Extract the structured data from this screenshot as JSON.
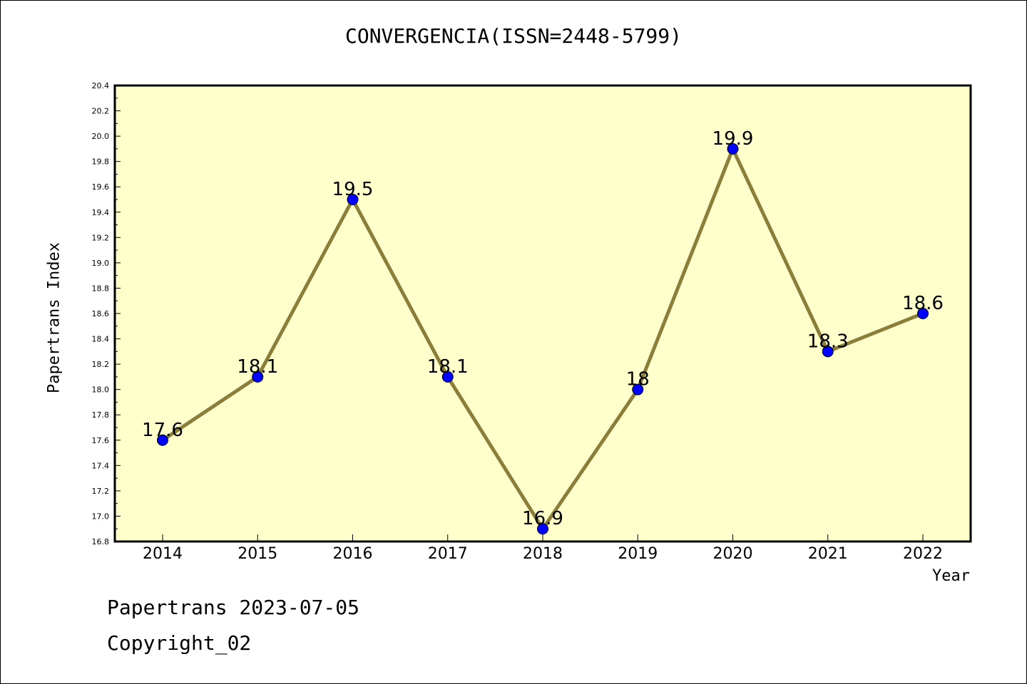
{
  "chart_data": {
    "type": "line",
    "title": "CONVERGENCIA(ISSN=2448-5799)",
    "xlabel": "Year",
    "ylabel": "Papertrans Index",
    "categories": [
      "2014",
      "2015",
      "2016",
      "2017",
      "2018",
      "2019",
      "2020",
      "2021",
      "2022"
    ],
    "values": [
      17.6,
      18.1,
      19.5,
      18.1,
      16.9,
      18.0,
      19.9,
      18.3,
      18.6
    ],
    "data_labels": [
      "17.6",
      "18.1",
      "19.5",
      "18.1",
      "16.9",
      "18",
      "19.9",
      "18.3",
      "18.6"
    ],
    "ylim": [
      16.8,
      20.4
    ],
    "y_ticks": [
      "16.8",
      "17.0",
      "17.2",
      "17.4",
      "17.6",
      "17.8",
      "18.0",
      "18.2",
      "18.4",
      "18.6",
      "18.8",
      "19.0",
      "19.2",
      "19.4",
      "19.6",
      "19.8",
      "20.0",
      "20.2",
      "20.4"
    ],
    "grid": false,
    "legend": "none",
    "colors": {
      "plot_background": "#ffffcc",
      "line": "#8b7d3a",
      "marker": "#0000ff"
    }
  },
  "footer": {
    "date": "Papertrans 2023-07-05",
    "copyright": "Copyright_02"
  }
}
